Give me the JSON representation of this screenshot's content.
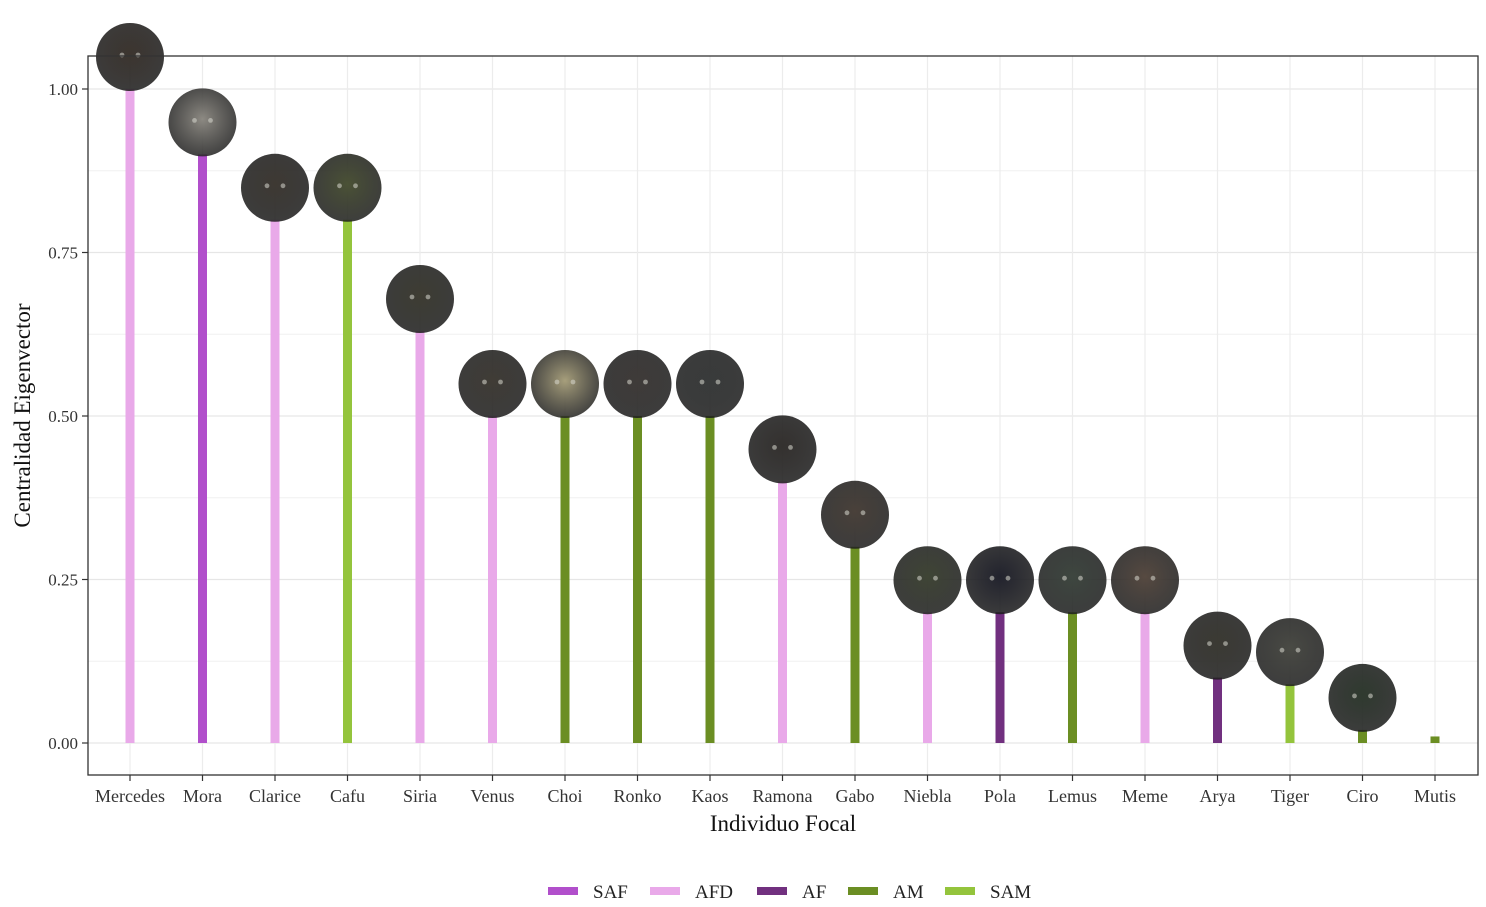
{
  "chart_data": {
    "type": "bar",
    "title": "",
    "xlabel": "Individuo Focal",
    "ylabel": "Centralidad Eigenvector",
    "ylim": [
      -0.05,
      1.05
    ],
    "y_ticks": [
      "0.00",
      "0.25",
      "0.50",
      "0.75",
      "1.00"
    ],
    "y_tick_values": [
      0,
      0.25,
      0.5,
      0.75,
      1.0
    ],
    "grid": true,
    "legend_position": "bottom",
    "categories": [
      "Mercedes",
      "Mora",
      "Clarice",
      "Cafu",
      "Siria",
      "Venus",
      "Choi",
      "Ronko",
      "Kaos",
      "Ramona",
      "Gabo",
      "Niebla",
      "Pola",
      "Lemus",
      "Meme",
      "Arya",
      "Tiger",
      "Ciro",
      "Mutis"
    ],
    "values": [
      1.0,
      0.9,
      0.8,
      0.8,
      0.63,
      0.5,
      0.5,
      0.5,
      0.5,
      0.4,
      0.3,
      0.2,
      0.2,
      0.2,
      0.2,
      0.1,
      0.09,
      0.02,
      0.01
    ],
    "groups": [
      "AFD",
      "SAF",
      "AFD",
      "SAM",
      "AFD",
      "AFD",
      "AM",
      "AM",
      "AM",
      "AFD",
      "AM",
      "AFD",
      "AF",
      "AM",
      "AFD",
      "AF",
      "SAM",
      "AM",
      "AM"
    ],
    "legend": [
      {
        "name": "SAF",
        "color": "#b14fcb"
      },
      {
        "name": "AFD",
        "color": "#e9a9e9"
      },
      {
        "name": "AF",
        "color": "#71307f"
      },
      {
        "name": "AM",
        "color": "#6b8e23"
      },
      {
        "name": "SAM",
        "color": "#94c43c"
      }
    ],
    "photo_markers": [
      {
        "category": "Mercedes",
        "fill": "#3c352f"
      },
      {
        "category": "Mora",
        "fill": "#8d8a83"
      },
      {
        "category": "Clarice",
        "fill": "#3e3933"
      },
      {
        "category": "Cafu",
        "fill": "#4b5236"
      },
      {
        "category": "Siria",
        "fill": "#3e3d33"
      },
      {
        "category": "Venus",
        "fill": "#403c36"
      },
      {
        "category": "Choi",
        "fill": "#a79f7c"
      },
      {
        "category": "Ronko",
        "fill": "#3f3b39"
      },
      {
        "category": "Kaos",
        "fill": "#393b3b"
      },
      {
        "category": "Ramona",
        "fill": "#34312f"
      },
      {
        "category": "Gabo",
        "fill": "#4a413a"
      },
      {
        "category": "Niebla",
        "fill": "#3f4535"
      },
      {
        "category": "Pola",
        "fill": "#22232e"
      },
      {
        "category": "Lemus",
        "fill": "#3e4740"
      },
      {
        "category": "Meme",
        "fill": "#574a41"
      },
      {
        "category": "Arya",
        "fill": "#3b3a33"
      },
      {
        "category": "Tiger",
        "fill": "#4a4b45"
      },
      {
        "category": "Ciro",
        "fill": "#2f3a2f"
      }
    ]
  }
}
